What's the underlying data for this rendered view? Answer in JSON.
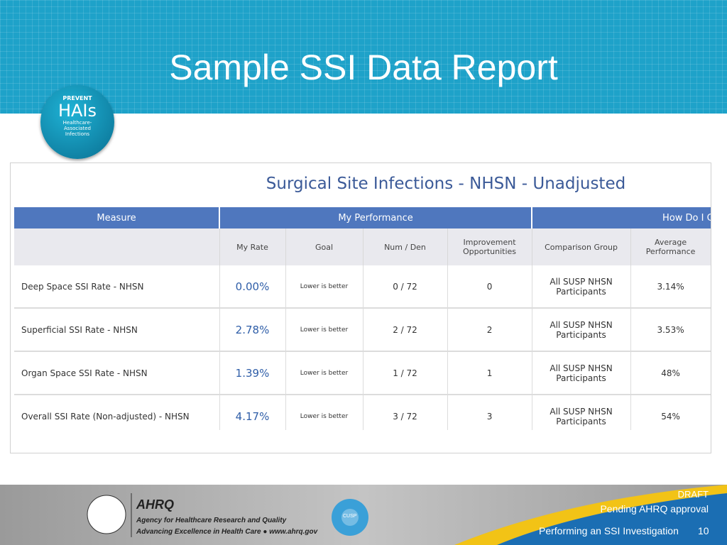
{
  "header": {
    "title": "Sample SSI Data Report"
  },
  "badge": {
    "top": "PREVENT",
    "main": "HAIs",
    "lines": [
      "Healthcare-",
      "Associated",
      "Infections"
    ]
  },
  "report": {
    "title": "Surgical Site Infections - NHSN - Unadjusted"
  },
  "table": {
    "group_headers": [
      "Measure",
      "My Performance",
      "How Do I C"
    ],
    "sub_headers": [
      "My Rate",
      "Goal",
      "Num / Den",
      "Improvement Opportunities",
      "Comparison Group",
      "Average Performance"
    ],
    "rows": [
      [
        "Deep Space SSI Rate - NHSN",
        "0.00%",
        "Lower is better",
        "0 / 72",
        "0",
        "All SUSP NHSN Participants",
        "3.14%"
      ],
      [
        "Superficial SSI Rate - NHSN",
        "2.78%",
        "Lower is better",
        "2 / 72",
        "2",
        "All SUSP NHSN Participants",
        "3.53%"
      ],
      [
        "Organ Space SSI Rate - NHSN",
        "1.39%",
        "Lower is better",
        "1 / 72",
        "1",
        "All SUSP NHSN Participants",
        "48%"
      ],
      [
        "Overall SSI Rate (Non-adjusted) - NHSN",
        "4.17%",
        "Lower is better",
        "3 / 72",
        "3",
        "All SUSP NHSN Participants",
        "54%"
      ]
    ]
  },
  "footer": {
    "ahrq": "AHRQ",
    "agency": "Agency for Healthcare Research and Quality",
    "tagline": "Advancing Excellence in Health Care",
    "url": "www.ahrq.gov",
    "cusp": "CUSP",
    "draft": "DRAFT",
    "pending": "Pending AHRQ approval",
    "course": "Performing an SSI Investigation",
    "page": "10"
  }
}
